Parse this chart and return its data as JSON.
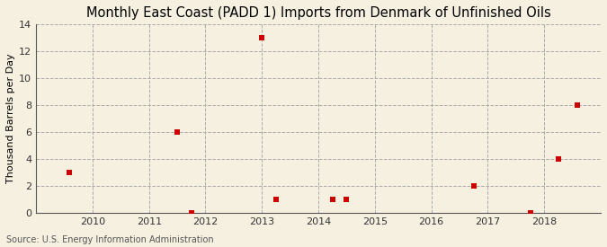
{
  "title": "Monthly East Coast (PADD 1) Imports from Denmark of Unfinished Oils",
  "ylabel": "Thousand Barrels per Day",
  "source": "Source: U.S. Energy Information Administration",
  "background_color": "#f5f0e0",
  "plot_background": "#f5f0e0",
  "marker_color": "#cc0000",
  "marker_size": 5,
  "xlim": [
    2009.0,
    2019.0
  ],
  "ylim": [
    0,
    14
  ],
  "yticks": [
    0,
    2,
    4,
    6,
    8,
    10,
    12,
    14
  ],
  "xticks": [
    2010,
    2011,
    2012,
    2013,
    2014,
    2015,
    2016,
    2017,
    2018
  ],
  "data_x": [
    2009.58,
    2011.5,
    2011.75,
    2013.0,
    2013.25,
    2014.25,
    2014.5,
    2016.75,
    2017.75,
    2018.25,
    2018.58
  ],
  "data_y": [
    3,
    6,
    0,
    13,
    1,
    1,
    1,
    2,
    0,
    4,
    8
  ],
  "title_fontsize": 10.5,
  "ylabel_fontsize": 8,
  "tick_fontsize": 8,
  "source_fontsize": 7
}
